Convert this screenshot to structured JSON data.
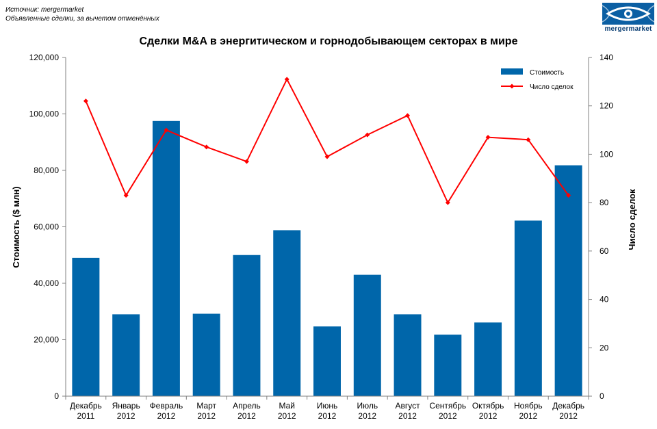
{
  "header": {
    "source_line": "Источник: mergermarket",
    "note_line": "Объявленные сделки, за вычетом отменённых",
    "logo_text": "mergermarket"
  },
  "chart_data": {
    "type": "bar",
    "title": "Сделки M&A в энергитическом и горнодобывающем секторах в мире",
    "categories": [
      [
        "Декабрь",
        "2011"
      ],
      [
        "Январь",
        "2012"
      ],
      [
        "Февраль",
        "2012"
      ],
      [
        "Март",
        "2012"
      ],
      [
        "Апрель",
        "2012"
      ],
      [
        "Май",
        "2012"
      ],
      [
        "Июнь",
        "2012"
      ],
      [
        "Июль",
        "2012"
      ],
      [
        "Август",
        "2012"
      ],
      [
        "Сентябрь",
        "2012"
      ],
      [
        "Октябрь",
        "2012"
      ],
      [
        "Ноябрь",
        "2012"
      ],
      [
        "Декабрь",
        "2012"
      ]
    ],
    "series": [
      {
        "name": "Стоимость",
        "type": "bar",
        "axis": "left",
        "color": "#0066aa",
        "values": [
          49000,
          29000,
          97500,
          29200,
          50000,
          58800,
          24700,
          43000,
          29000,
          21800,
          26100,
          62200,
          81800
        ]
      },
      {
        "name": "Число сделок",
        "type": "line",
        "axis": "right",
        "color": "#ff0000",
        "values": [
          122,
          83,
          110,
          103,
          97,
          131,
          99,
          108,
          116,
          80,
          107,
          106,
          83
        ]
      }
    ],
    "ylabel": "Стоимость ($ млн)",
    "y2label": "Число сделок",
    "ylim": [
      0,
      120000
    ],
    "y2lim": [
      0,
      140
    ],
    "yticks": [
      "0",
      "20,000",
      "40,000",
      "60,000",
      "80,000",
      "100,000",
      "120,000"
    ],
    "y2ticks": [
      "0",
      "20",
      "40",
      "60",
      "80",
      "100",
      "120",
      "140"
    ],
    "legend_position": "top-right",
    "grid": false
  }
}
